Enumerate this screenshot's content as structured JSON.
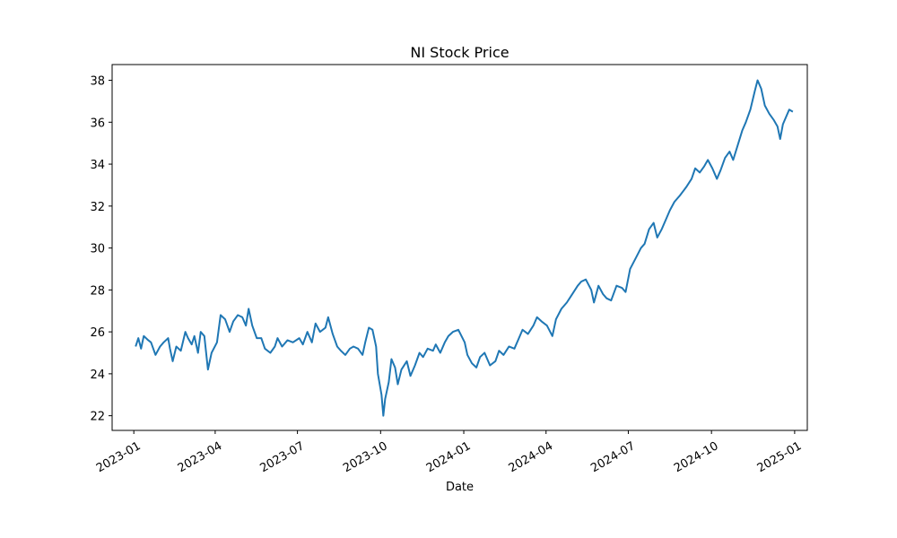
{
  "chart_data": {
    "type": "line",
    "title": "NI Stock Price",
    "xlabel": "Date",
    "ylabel": "",
    "ylim": [
      21.3,
      38.75
    ],
    "xlim": [
      "2022-12-08",
      "2025-01-15"
    ],
    "x_ticks": [
      "2023-01",
      "2023-04",
      "2023-07",
      "2023-10",
      "2024-01",
      "2024-04",
      "2024-07",
      "2024-10",
      "2025-01"
    ],
    "y_ticks": [
      22,
      24,
      26,
      28,
      30,
      32,
      34,
      36,
      38
    ],
    "grid": false,
    "color": "#1f77b4",
    "series": [
      {
        "name": "NI",
        "points": [
          [
            "2023-01-03",
            25.3
          ],
          [
            "2023-01-06",
            25.7
          ],
          [
            "2023-01-09",
            25.2
          ],
          [
            "2023-01-12",
            25.8
          ],
          [
            "2023-01-17",
            25.6
          ],
          [
            "2023-01-20",
            25.5
          ],
          [
            "2023-01-25",
            24.9
          ],
          [
            "2023-01-30",
            25.3
          ],
          [
            "2023-02-03",
            25.5
          ],
          [
            "2023-02-08",
            25.7
          ],
          [
            "2023-02-10",
            25.2
          ],
          [
            "2023-02-13",
            24.6
          ],
          [
            "2023-02-17",
            25.3
          ],
          [
            "2023-02-22",
            25.1
          ],
          [
            "2023-02-27",
            26.0
          ],
          [
            "2023-03-02",
            25.7
          ],
          [
            "2023-03-06",
            25.4
          ],
          [
            "2023-03-09",
            25.8
          ],
          [
            "2023-03-13",
            25.0
          ],
          [
            "2023-03-16",
            26.0
          ],
          [
            "2023-03-20",
            25.8
          ],
          [
            "2023-03-24",
            24.2
          ],
          [
            "2023-03-28",
            25.0
          ],
          [
            "2023-04-03",
            25.5
          ],
          [
            "2023-04-07",
            26.8
          ],
          [
            "2023-04-12",
            26.6
          ],
          [
            "2023-04-17",
            26.0
          ],
          [
            "2023-04-21",
            26.5
          ],
          [
            "2023-04-26",
            26.8
          ],
          [
            "2023-05-01",
            26.7
          ],
          [
            "2023-05-05",
            26.3
          ],
          [
            "2023-05-08",
            27.1
          ],
          [
            "2023-05-12",
            26.3
          ],
          [
            "2023-05-17",
            25.7
          ],
          [
            "2023-05-22",
            25.7
          ],
          [
            "2023-05-26",
            25.2
          ],
          [
            "2023-06-01",
            25.0
          ],
          [
            "2023-06-06",
            25.3
          ],
          [
            "2023-06-09",
            25.7
          ],
          [
            "2023-06-14",
            25.3
          ],
          [
            "2023-06-20",
            25.6
          ],
          [
            "2023-06-26",
            25.5
          ],
          [
            "2023-07-03",
            25.7
          ],
          [
            "2023-07-07",
            25.4
          ],
          [
            "2023-07-12",
            26.0
          ],
          [
            "2023-07-17",
            25.5
          ],
          [
            "2023-07-21",
            26.4
          ],
          [
            "2023-07-26",
            26.0
          ],
          [
            "2023-08-01",
            26.2
          ],
          [
            "2023-08-04",
            26.7
          ],
          [
            "2023-08-09",
            25.9
          ],
          [
            "2023-08-14",
            25.3
          ],
          [
            "2023-08-18",
            25.1
          ],
          [
            "2023-08-23",
            24.9
          ],
          [
            "2023-08-28",
            25.2
          ],
          [
            "2023-09-01",
            25.3
          ],
          [
            "2023-09-06",
            25.2
          ],
          [
            "2023-09-11",
            24.9
          ],
          [
            "2023-09-14",
            25.5
          ],
          [
            "2023-09-18",
            26.2
          ],
          [
            "2023-09-22",
            26.1
          ],
          [
            "2023-09-26",
            25.3
          ],
          [
            "2023-09-28",
            24.0
          ],
          [
            "2023-10-02",
            23.0
          ],
          [
            "2023-10-04",
            22.0
          ],
          [
            "2023-10-06",
            22.8
          ],
          [
            "2023-10-10",
            23.6
          ],
          [
            "2023-10-13",
            24.7
          ],
          [
            "2023-10-17",
            24.3
          ],
          [
            "2023-10-20",
            23.5
          ],
          [
            "2023-10-24",
            24.2
          ],
          [
            "2023-10-30",
            24.6
          ],
          [
            "2023-11-03",
            23.9
          ],
          [
            "2023-11-08",
            24.4
          ],
          [
            "2023-11-13",
            25.0
          ],
          [
            "2023-11-17",
            24.8
          ],
          [
            "2023-11-22",
            25.2
          ],
          [
            "2023-11-28",
            25.1
          ],
          [
            "2023-12-01",
            25.4
          ],
          [
            "2023-12-06",
            25.0
          ],
          [
            "2023-12-11",
            25.5
          ],
          [
            "2023-12-15",
            25.8
          ],
          [
            "2023-12-20",
            26.0
          ],
          [
            "2023-12-26",
            26.1
          ],
          [
            "2024-01-02",
            25.5
          ],
          [
            "2024-01-05",
            24.9
          ],
          [
            "2024-01-10",
            24.5
          ],
          [
            "2024-01-15",
            24.3
          ],
          [
            "2024-01-19",
            24.8
          ],
          [
            "2024-01-24",
            25.0
          ],
          [
            "2024-01-30",
            24.4
          ],
          [
            "2024-02-05",
            24.6
          ],
          [
            "2024-02-09",
            25.1
          ],
          [
            "2024-02-14",
            24.9
          ],
          [
            "2024-02-20",
            25.3
          ],
          [
            "2024-02-26",
            25.2
          ],
          [
            "2024-03-01",
            25.6
          ],
          [
            "2024-03-06",
            26.1
          ],
          [
            "2024-03-12",
            25.9
          ],
          [
            "2024-03-18",
            26.3
          ],
          [
            "2024-03-22",
            26.7
          ],
          [
            "2024-03-27",
            26.5
          ],
          [
            "2024-04-02",
            26.3
          ],
          [
            "2024-04-08",
            25.8
          ],
          [
            "2024-04-12",
            26.6
          ],
          [
            "2024-04-18",
            27.1
          ],
          [
            "2024-04-24",
            27.4
          ],
          [
            "2024-04-30",
            27.8
          ],
          [
            "2024-05-06",
            28.2
          ],
          [
            "2024-05-10",
            28.4
          ],
          [
            "2024-05-15",
            28.5
          ],
          [
            "2024-05-21",
            28.0
          ],
          [
            "2024-05-24",
            27.4
          ],
          [
            "2024-05-29",
            28.2
          ],
          [
            "2024-06-03",
            27.8
          ],
          [
            "2024-06-07",
            27.6
          ],
          [
            "2024-06-12",
            27.5
          ],
          [
            "2024-06-18",
            28.2
          ],
          [
            "2024-06-24",
            28.1
          ],
          [
            "2024-06-28",
            27.9
          ],
          [
            "2024-07-03",
            29.0
          ],
          [
            "2024-07-09",
            29.5
          ],
          [
            "2024-07-15",
            30.0
          ],
          [
            "2024-07-19",
            30.2
          ],
          [
            "2024-07-24",
            30.9
          ],
          [
            "2024-07-29",
            31.2
          ],
          [
            "2024-08-02",
            30.5
          ],
          [
            "2024-08-07",
            30.9
          ],
          [
            "2024-08-12",
            31.4
          ],
          [
            "2024-08-16",
            31.8
          ],
          [
            "2024-08-21",
            32.2
          ],
          [
            "2024-08-27",
            32.5
          ],
          [
            "2024-09-03",
            32.9
          ],
          [
            "2024-09-09",
            33.3
          ],
          [
            "2024-09-13",
            33.8
          ],
          [
            "2024-09-18",
            33.6
          ],
          [
            "2024-09-23",
            33.9
          ],
          [
            "2024-09-27",
            34.2
          ],
          [
            "2024-10-02",
            33.8
          ],
          [
            "2024-10-07",
            33.3
          ],
          [
            "2024-10-11",
            33.7
          ],
          [
            "2024-10-16",
            34.3
          ],
          [
            "2024-10-21",
            34.6
          ],
          [
            "2024-10-25",
            34.2
          ],
          [
            "2024-10-30",
            34.9
          ],
          [
            "2024-11-04",
            35.6
          ],
          [
            "2024-11-08",
            36.0
          ],
          [
            "2024-11-13",
            36.6
          ],
          [
            "2024-11-18",
            37.5
          ],
          [
            "2024-11-21",
            38.0
          ],
          [
            "2024-11-25",
            37.6
          ],
          [
            "2024-11-29",
            36.8
          ],
          [
            "2024-12-04",
            36.4
          ],
          [
            "2024-12-09",
            36.1
          ],
          [
            "2024-12-13",
            35.8
          ],
          [
            "2024-12-16",
            35.2
          ],
          [
            "2024-12-19",
            35.9
          ],
          [
            "2024-12-23",
            36.3
          ],
          [
            "2024-12-26",
            36.6
          ],
          [
            "2024-12-30",
            36.5
          ]
        ]
      }
    ]
  }
}
